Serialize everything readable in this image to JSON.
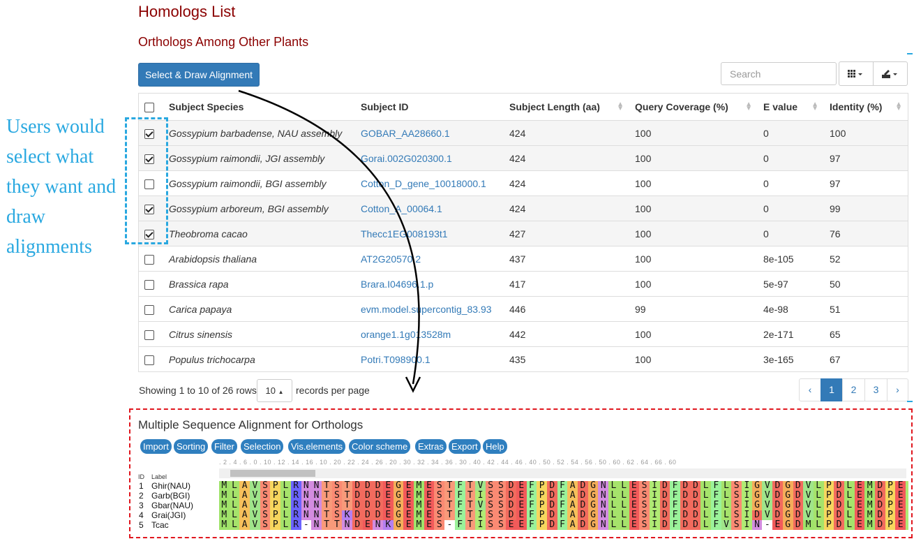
{
  "page": {
    "title": "Homologs List",
    "section_title": "Orthologs Among Other Plants"
  },
  "toolbar": {
    "draw_button": "Select & Draw Alignment",
    "search_placeholder": "Search",
    "grid_icon": "grid-icon",
    "export_icon": "export-icon"
  },
  "table": {
    "headers": [
      "Subject Species",
      "Subject ID",
      "Subject Length (aa)",
      "Query Coverage (%)",
      "E value",
      "Identity (%)"
    ],
    "rows": [
      {
        "checked": true,
        "species": "Gossypium barbadense, NAU assembly",
        "id": "GOBAR_AA28660.1",
        "length": "424",
        "coverage": "100",
        "evalue": "0",
        "identity": "100"
      },
      {
        "checked": true,
        "species": "Gossypium raimondii, JGI assembly",
        "id": "Gorai.002G020300.1",
        "length": "424",
        "coverage": "100",
        "evalue": "0",
        "identity": "97"
      },
      {
        "checked": false,
        "species": "Gossypium raimondii, BGI assembly",
        "id": "Cotton_D_gene_10018000.1",
        "length": "424",
        "coverage": "100",
        "evalue": "0",
        "identity": "97"
      },
      {
        "checked": true,
        "species": "Gossypium arboreum, BGI assembly",
        "id": "Cotton_A_00064.1",
        "length": "424",
        "coverage": "100",
        "evalue": "0",
        "identity": "99"
      },
      {
        "checked": true,
        "species": "Theobroma cacao",
        "id": "Thecc1EG008193t1",
        "length": "427",
        "coverage": "100",
        "evalue": "0",
        "identity": "76"
      },
      {
        "checked": false,
        "species": "Arabidopsis thaliana",
        "id": "AT2G20570.2",
        "length": "437",
        "coverage": "100",
        "evalue": "8e-105",
        "identity": "52"
      },
      {
        "checked": false,
        "species": "Brassica rapa",
        "id": "Brara.I04696.1.p",
        "length": "417",
        "coverage": "100",
        "evalue": "5e-97",
        "identity": "50"
      },
      {
        "checked": false,
        "species": "Carica papaya",
        "id": "evm.model.supercontig_83.93",
        "length": "446",
        "coverage": "99",
        "evalue": "4e-98",
        "identity": "51"
      },
      {
        "checked": false,
        "species": "Citrus sinensis",
        "id": "orange1.1g013528m",
        "length": "442",
        "coverage": "100",
        "evalue": "2e-171",
        "identity": "65"
      },
      {
        "checked": false,
        "species": "Populus trichocarpa",
        "id": "Potri.T098900.1",
        "length": "435",
        "coverage": "100",
        "evalue": "3e-165",
        "identity": "67"
      }
    ]
  },
  "pagination": {
    "showing": "Showing 1 to 10 of 26 rows",
    "page_size": "10",
    "per_page_label": "records per page",
    "prev": "‹",
    "pages": [
      "1",
      "2",
      "3"
    ],
    "next": "›",
    "active_page": "1"
  },
  "annotation": {
    "text": "Users would select what they want and draw alignments"
  },
  "msa": {
    "title": "Multiple Sequence Alignment for Orthologs",
    "menu": [
      "Import",
      "Sorting",
      "Filter",
      "Selection",
      "Vis.elements",
      "Color scheme",
      "Extras",
      "Export",
      "Help"
    ],
    "ruler": ". 2 . 4 . 6 . 0 . 10 . 12 . 14 . 16 . 10 . 20 . 22 . 24 . 26 . 20 . 30 . 32 . 34 . 36 . 30 . 40 . 42 . 44 . 46 . 40 . 50 . 52 . 54 . 56 . 50 . 60 . 62 . 64 . 66 . 60",
    "id_header": "ID",
    "label_header": "Label",
    "sequences": [
      {
        "id": "1",
        "label": "Ghir(NAU)",
        "seq": "MLAVSPLRNNTSTDDDEGEMESTFTVSSDEFPDFADGNLLESIDFDDLFLSIGVDGDVLPDLEMDPEI"
      },
      {
        "id": "2",
        "label": "Garb(BGI)",
        "seq": "MLAVSPLRNNTSTDDDEGEMESTFTISSDEFPDFADGNLLESIDFDDLFLSIGVDGDVLPDLEMDPEI"
      },
      {
        "id": "3",
        "label": "Gbar(NAU)",
        "seq": "MLAVSPLRNNTSTDDDEGEMESTFTVSSDEFPDFADGNLLESIDFDDLFLSIGVDGDVLPDLEMDPEI"
      },
      {
        "id": "4",
        "label": "Grai(JGI)",
        "seq": "MLAVSPLRNNTSKDDDEGEMESTFTISSDEFPDFADGNLLESIDFDDLFLSIDVDGDVLPDLEMDPEI"
      },
      {
        "id": "5",
        "label": "Tcac",
        "seq": "MLAVSPLR-NTTNDENKGEMES-FTISSEEFPDFADGNLLESIDFDDLFVSIN-EGDMLPDLEMDPEI"
      }
    ],
    "colors": {
      "M": "#9fe36a",
      "L": "#a6e36b",
      "A": "#f6c05b",
      "V": "#a0e58a",
      "S": "#fa8a73",
      "P": "#f6d65e",
      "R": "#6b63ff",
      "N": "#d38ce0",
      "T": "#f89a7a",
      "D": "#f26b5e",
      "E": "#f25a5a",
      "G": "#f4ad5a",
      "F": "#9bf29a",
      "I": "#b0ea74",
      "K": "#b47ff0",
      "-": "#ffffff"
    }
  },
  "colors": {
    "title": "#8b0000",
    "primary": "#337ab7",
    "annotation": "#29a8e0",
    "msa_border": "#e0161e"
  }
}
